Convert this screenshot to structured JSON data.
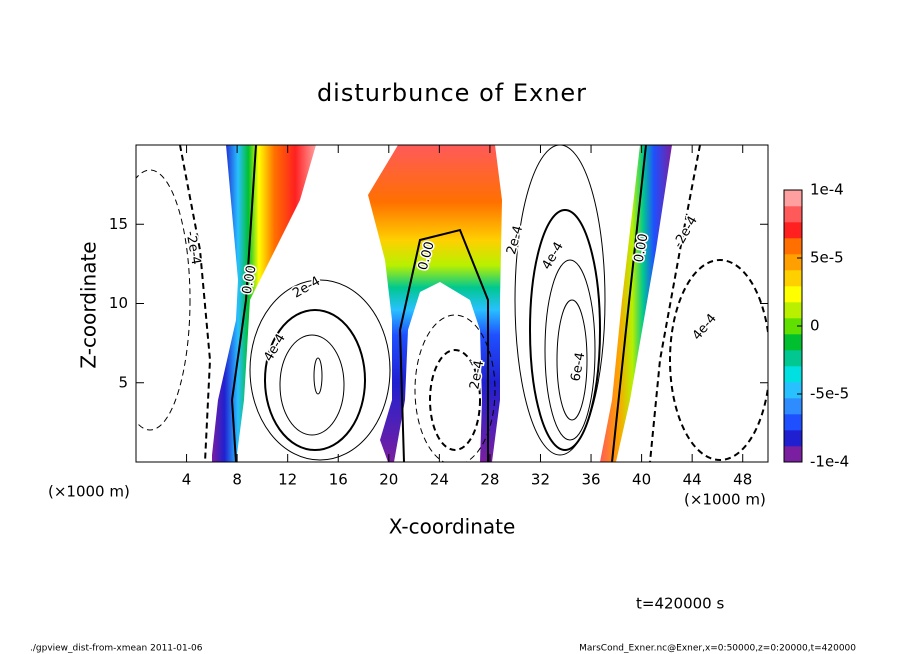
{
  "chart_data": {
    "type": "contour",
    "title": "disturbunce of Exner",
    "xlabel": "X-coordinate",
    "ylabel": "Z-coordinate",
    "x_unit": "(×1000 m)",
    "xlim": [
      0,
      50
    ],
    "xticks": [
      4,
      8,
      12,
      16,
      20,
      24,
      28,
      32,
      36,
      40,
      44,
      48
    ],
    "ylim": [
      0,
      20
    ],
    "yticks": [
      5,
      10,
      15
    ],
    "colorbar": {
      "zlim": [
        -0.0001,
        0.0001
      ],
      "ticks": [
        {
          "value": 0.0001,
          "label": "1e-4"
        },
        {
          "value": 5e-05,
          "label": "5e-5"
        },
        0,
        {
          "value": -5e-05,
          "label": "-5e-5"
        },
        {
          "value": -0.0001,
          "label": "-1e-4"
        }
      ],
      "colors": [
        "#7a1fa0",
        "#2020d0",
        "#1f50ff",
        "#2f8cff",
        "#28c0ff",
        "#00e0e0",
        "#00c890",
        "#00c030",
        "#60e000",
        "#b8f000",
        "#ffff00",
        "#ffd000",
        "#ffa000",
        "#ff7000",
        "#ff2020",
        "#ff5a5a",
        "#ffa0a0"
      ]
    },
    "contour_labels": [
      "-2e-4",
      "0.00",
      "2e-4",
      "4e-4",
      "0.00",
      "2e-4",
      "4e-4",
      "2e-4",
      "6e-4",
      "0.00",
      "-2e-4",
      "4e-4"
    ],
    "annotation": "t=420000 s"
  },
  "footer": {
    "left": "./gpview_dist-from-xmean  2011-01-06",
    "right": "MarsCond_Exner.nc@Exner,x=0:50000,z=0:20000,t=420000"
  }
}
